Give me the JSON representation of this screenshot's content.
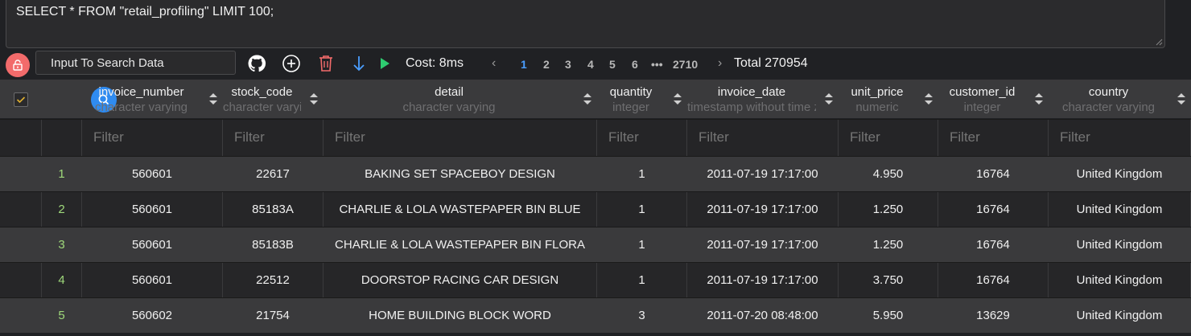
{
  "editor": {
    "query": "SELECT * FROM \"retail_profiling\" LIMIT 100;"
  },
  "toolbar": {
    "search_value": "Input To Search Data",
    "cost": "Cost: 8ms",
    "pages": [
      "1",
      "2",
      "3",
      "4",
      "5",
      "6"
    ],
    "ellipsis": "•••",
    "last_page": "2710",
    "prev": "‹",
    "next": "›",
    "total": "Total 270954"
  },
  "colors": {
    "lock": "#f26b6b",
    "accent": "#2f8bf0",
    "index": "#9fd97b",
    "github": "#ffffff",
    "delete": "#f26b6b",
    "download": "#4a9eff",
    "run": "#2ecc71"
  },
  "columns": [
    {
      "name": "invoice_number",
      "type": "character varying"
    },
    {
      "name": "stock_code",
      "type": "character varying"
    },
    {
      "name": "detail",
      "type": "character varying"
    },
    {
      "name": "quantity",
      "type": "integer"
    },
    {
      "name": "invoice_date",
      "type": "timestamp without time zone"
    },
    {
      "name": "unit_price",
      "type": "numeric"
    },
    {
      "name": "customer_id",
      "type": "integer"
    },
    {
      "name": "country",
      "type": "character varying"
    }
  ],
  "filters": {
    "placeholder": "Filter"
  },
  "rows": [
    {
      "idx": "1",
      "cells": [
        "560601",
        "22617",
        "BAKING SET SPACEBOY DESIGN",
        "1",
        "2011-07-19 17:17:00",
        "4.950",
        "16764",
        "United Kingdom"
      ]
    },
    {
      "idx": "2",
      "cells": [
        "560601",
        "85183A",
        "CHARLIE & LOLA WASTEPAPER BIN BLUE",
        "1",
        "2011-07-19 17:17:00",
        "1.250",
        "16764",
        "United Kingdom"
      ]
    },
    {
      "idx": "3",
      "cells": [
        "560601",
        "85183B",
        "CHARLIE & LOLA WASTEPAPER BIN FLORA",
        "1",
        "2011-07-19 17:17:00",
        "1.250",
        "16764",
        "United Kingdom"
      ]
    },
    {
      "idx": "4",
      "cells": [
        "560601",
        "22512",
        "DOORSTOP RACING CAR DESIGN",
        "1",
        "2011-07-19 17:17:00",
        "3.750",
        "16764",
        "United Kingdom"
      ]
    },
    {
      "idx": "5",
      "cells": [
        "560602",
        "21754",
        "HOME BUILDING BLOCK WORD",
        "3",
        "2011-07-20 08:48:00",
        "5.950",
        "13629",
        "United Kingdom"
      ]
    }
  ]
}
